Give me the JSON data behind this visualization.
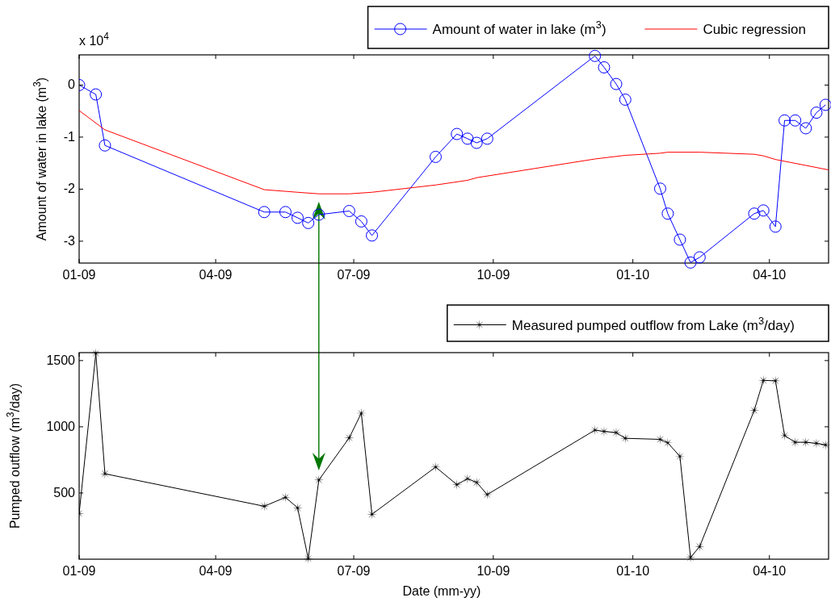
{
  "chart_data": [
    {
      "type": "line",
      "ylabel": "Amount of water in lake (m$^{3}$)",
      "annotations": [
        "x 10$^{4}$"
      ],
      "xlim": [
        "2009-01-01",
        "2010-05-10"
      ],
      "ylim": [
        -3.42,
        0.58
      ],
      "xticks": [
        {
          "value": "2009-01-01",
          "label": "01-09"
        },
        {
          "value": "2009-04-01",
          "label": "04-09"
        },
        {
          "value": "2009-07-01",
          "label": "07-09"
        },
        {
          "value": "2009-10-01",
          "label": "10-09"
        },
        {
          "value": "2010-01-01",
          "label": "01-10"
        },
        {
          "value": "2010-04-01",
          "label": "04-10"
        }
      ],
      "yticks": [
        0,
        -1,
        -2,
        -3
      ],
      "grid": false,
      "legend": "top right",
      "series": [
        {
          "name": "Amount of water in lake (m$^{3}$)",
          "color": "#0000ff",
          "marker": "circle",
          "x": [
            "2009-01-01",
            "2009-01-12",
            "2009-01-18",
            "2009-05-03",
            "2009-05-17",
            "2009-05-25",
            "2009-06-01",
            "2009-06-08",
            "2009-06-28",
            "2009-07-06",
            "2009-07-13",
            "2009-08-24",
            "2009-09-07",
            "2009-09-14",
            "2009-09-20",
            "2009-09-27",
            "2009-12-07",
            "2009-12-13",
            "2009-12-21",
            "2009-12-27",
            "2010-01-19",
            "2010-01-24",
            "2010-02-01",
            "2010-02-08",
            "2010-02-14",
            "2010-03-22",
            "2010-03-28",
            "2010-04-05",
            "2010-04-11",
            "2010-04-18",
            "2010-04-25",
            "2010-05-02",
            "2010-05-08"
          ],
          "values": [
            0,
            -0.18,
            -1.16,
            -2.44,
            -2.44,
            -2.55,
            -2.65,
            -2.49,
            -2.42,
            -2.62,
            -2.89,
            -1.38,
            -0.94,
            -1.03,
            -1.11,
            -1.03,
            0.56,
            0.34,
            0.02,
            -0.28,
            -1.99,
            -2.47,
            -2.97,
            -3.41,
            -3.31,
            -2.47,
            -2.41,
            -2.72,
            -0.68,
            -0.68,
            -0.83,
            -0.53,
            -0.38
          ]
        },
        {
          "name": "Cubic regression",
          "color": "#ff0000",
          "marker": "none",
          "x": [
            "2009-01-01",
            "2009-01-18",
            "2009-05-03",
            "2009-05-25",
            "2009-06-08",
            "2009-06-28",
            "2009-07-13",
            "2009-08-24",
            "2009-09-14",
            "2009-09-20",
            "2009-12-07",
            "2009-12-27",
            "2010-01-19",
            "2010-01-24",
            "2010-02-14",
            "2010-03-22",
            "2010-03-28",
            "2010-04-05",
            "2010-05-10"
          ],
          "values": [
            -0.49,
            -0.86,
            -2.01,
            -2.06,
            -2.09,
            -2.09,
            -2.06,
            -1.92,
            -1.83,
            -1.78,
            -1.42,
            -1.35,
            -1.31,
            -1.29,
            -1.29,
            -1.33,
            -1.36,
            -1.43,
            -1.63
          ]
        }
      ]
    },
    {
      "type": "line",
      "xlabel": "Date (mm-yy)",
      "ylabel": "Pumped outflow (m$^{3}$/day)",
      "xlim": [
        "2009-01-01",
        "2010-05-10"
      ],
      "ylim": [
        0,
        1560
      ],
      "xticks": [
        {
          "value": "2009-01-01",
          "label": "01-09"
        },
        {
          "value": "2009-04-01",
          "label": "04-09"
        },
        {
          "value": "2009-07-01",
          "label": "07-09"
        },
        {
          "value": "2009-10-01",
          "label": "10-09"
        },
        {
          "value": "2010-01-01",
          "label": "01-10"
        },
        {
          "value": "2010-04-01",
          "label": "04-10"
        }
      ],
      "yticks": [
        500,
        1000,
        1500
      ],
      "grid": false,
      "legend": "top right",
      "series": [
        {
          "name": "Measured pumped outflow from Lake (m$^{3}$/day)",
          "color": "#000000",
          "marker": "star",
          "x": [
            "2009-01-01",
            "2009-01-12",
            "2009-01-18",
            "2009-05-03",
            "2009-05-17",
            "2009-05-25",
            "2009-06-01",
            "2009-06-08",
            "2009-06-28",
            "2009-07-06",
            "2009-07-13",
            "2009-08-24",
            "2009-09-07",
            "2009-09-14",
            "2009-09-20",
            "2009-09-27",
            "2009-12-07",
            "2009-12-13",
            "2009-12-21",
            "2009-12-27",
            "2010-01-19",
            "2010-01-24",
            "2010-02-01",
            "2010-02-08",
            "2010-02-14",
            "2010-03-22",
            "2010-03-28",
            "2010-04-05",
            "2010-04-11",
            "2010-04-18",
            "2010-04-25",
            "2010-05-02",
            "2010-05-08"
          ],
          "values": [
            345,
            1555,
            645,
            400,
            467,
            388,
            5,
            598,
            916,
            1103,
            339,
            696,
            563,
            608,
            580,
            488,
            975,
            965,
            956,
            913,
            905,
            879,
            777,
            13,
            95,
            1124,
            1351,
            1347,
            934,
            883,
            883,
            875,
            863
          ]
        }
      ]
    }
  ]
}
